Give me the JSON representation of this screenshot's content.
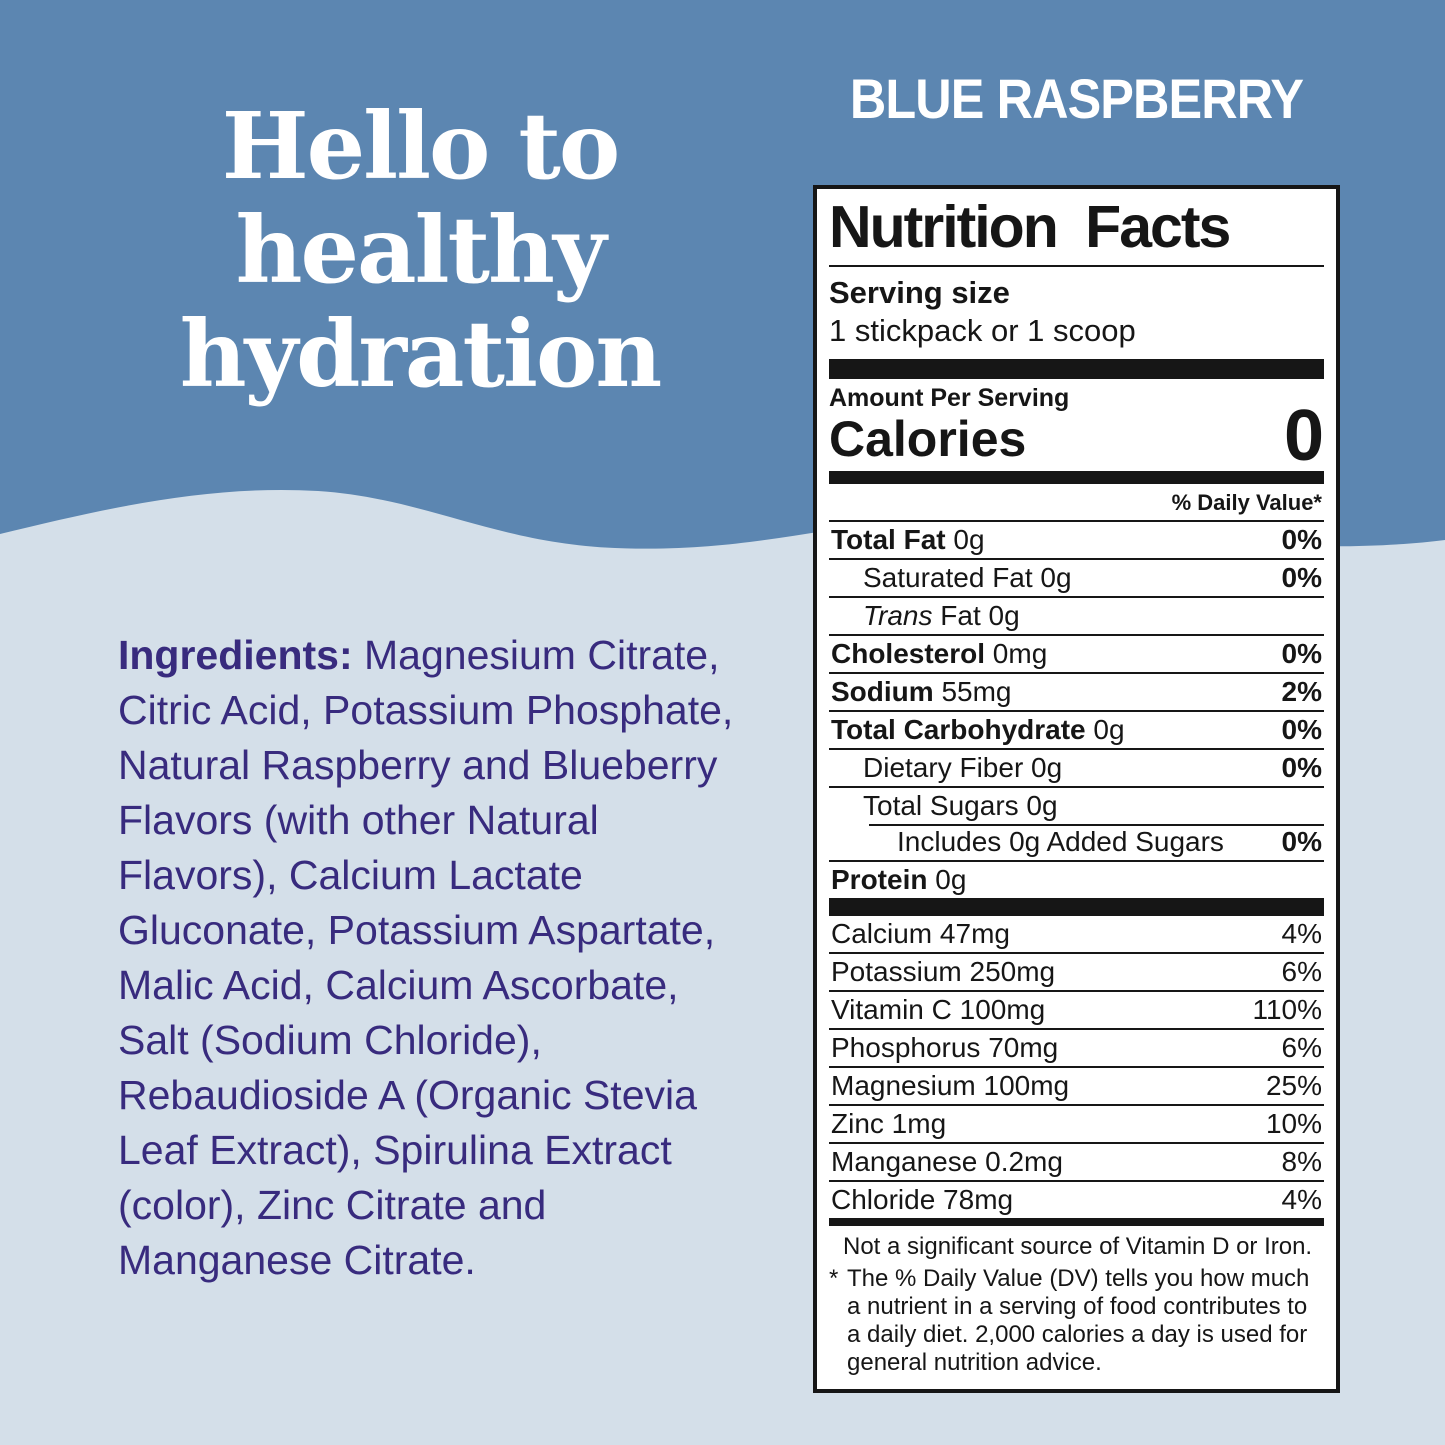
{
  "colors": {
    "top_background": "#5c86b1",
    "bottom_background": "#d4dfe9",
    "heading_text": "#ffffff",
    "ingredients_text": "#382b7e",
    "label_ink": "#161616"
  },
  "hero": {
    "heading_lines": [
      "Hello to",
      "healthy",
      "hydration"
    ],
    "flavor": "BLUE RASPBERRY"
  },
  "ingredients": {
    "label": "Ingredients:",
    "text": " Magnesium Citrate, Citric Acid, Potassium Phosphate, Natural Raspberry and Blueberry Flavors (with other Natural Flavors), Calcium Lactate Gluconate, Potassium Aspartate, Malic Acid, Calcium Ascorbate, Salt (Sodium Chloride), Rebaudioside A (Organic Stevia Leaf Extract), Spirulina Extract (color), Zinc Citrate and Manganese Citrate."
  },
  "nutrition": {
    "title": "Nutrition Facts",
    "serving_size_label": "Serving size",
    "serving_size_value": "1 stickpack or 1 scoop",
    "amount_per_serving": "Amount Per Serving",
    "calories_label": "Calories",
    "calories_value": "0",
    "daily_value_header": "% Daily Value*",
    "rows": [
      {
        "name": "Total Fat",
        "amount": "0g",
        "dv": "0%",
        "bold": true,
        "indent": 0
      },
      {
        "name": "Saturated Fat",
        "amount": "0g",
        "dv": "0%",
        "bold": false,
        "indent": 1
      },
      {
        "name": "Trans Fat",
        "amount": "0g",
        "dv": "",
        "bold": false,
        "indent": 1,
        "italic_prefix": "Trans"
      },
      {
        "name": "Cholesterol",
        "amount": "0mg",
        "dv": "0%",
        "bold": true,
        "indent": 0
      },
      {
        "name": "Sodium",
        "amount": "55mg",
        "dv": "2%",
        "bold": true,
        "indent": 0
      },
      {
        "name": "Total Carbohydrate",
        "amount": "0g",
        "dv": "0%",
        "bold": true,
        "indent": 0
      },
      {
        "name": "Dietary Fiber",
        "amount": "0g",
        "dv": "0%",
        "bold": false,
        "indent": 1
      },
      {
        "name": "Total Sugars",
        "amount": "0g",
        "dv": "",
        "bold": false,
        "indent": 1
      },
      {
        "name": "Includes 0g Added Sugars",
        "amount": "",
        "dv": "0%",
        "bold": false,
        "indent": 2,
        "partial_rule": true
      },
      {
        "name": "Protein",
        "amount": "0g",
        "dv": "",
        "bold": true,
        "indent": 0
      }
    ],
    "minerals": [
      {
        "name": "Calcium",
        "amount": "47mg",
        "dv": "4%"
      },
      {
        "name": "Potassium",
        "amount": "250mg",
        "dv": "6%"
      },
      {
        "name": "Vitamin C",
        "amount": "100mg",
        "dv": "110%"
      },
      {
        "name": "Phosphorus",
        "amount": "70mg",
        "dv": "6%"
      },
      {
        "name": "Magnesium",
        "amount": "100mg",
        "dv": "25%"
      },
      {
        "name": "Zinc",
        "amount": "1mg",
        "dv": "10%"
      },
      {
        "name": "Manganese",
        "amount": "0.2mg",
        "dv": "8%"
      },
      {
        "name": "Chloride",
        "amount": "78mg",
        "dv": "4%"
      }
    ],
    "footnote_1": "Not a significant source of Vitamin D or Iron.",
    "footnote_2_marker": "*",
    "footnote_2": "The % Daily Value (DV) tells you how much a nutrient in a serving of food contributes to a daily diet. 2,000 calories a day is used for general nutrition advice."
  }
}
